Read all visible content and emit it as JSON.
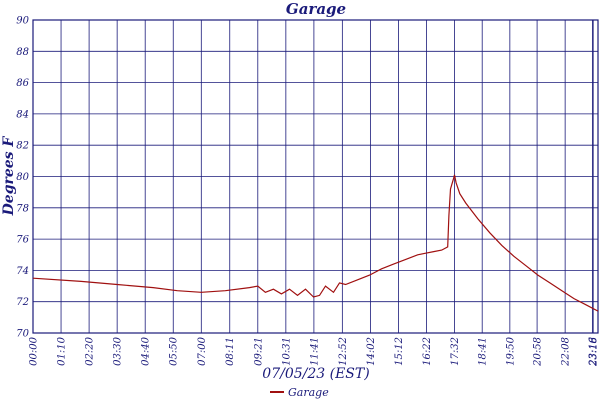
{
  "chart_data": {
    "type": "line",
    "title": "Garage",
    "xlabel": "07/05/23 (EST)",
    "ylabel": "Degrees F",
    "ylim": [
      70,
      90
    ],
    "yticks": [
      70,
      72,
      74,
      76,
      78,
      80,
      82,
      84,
      86,
      88,
      90
    ],
    "xlim": [
      "00:00",
      "23:30"
    ],
    "xticks": [
      "00:00",
      "01:10",
      "02:20",
      "03:30",
      "04:40",
      "05:50",
      "07:00",
      "08:11",
      "09:21",
      "10:31",
      "11:41",
      "12:52",
      "14:02",
      "15:12",
      "16:22",
      "17:32",
      "18:41",
      "19:50",
      "20:58",
      "22:08",
      "23:16",
      "23:18"
    ],
    "grid": true,
    "legend_position": "bottom",
    "series": [
      {
        "name": "Garage",
        "color": "#a01010",
        "x": [
          "00:00",
          "02:00",
          "03:30",
          "05:00",
          "06:00",
          "07:00",
          "08:00",
          "09:00",
          "09:21",
          "09:40",
          "10:00",
          "10:20",
          "10:40",
          "11:00",
          "11:20",
          "11:40",
          "11:55",
          "12:10",
          "12:30",
          "12:45",
          "13:00",
          "13:30",
          "14:00",
          "14:30",
          "15:00",
          "15:30",
          "16:00",
          "16:20",
          "16:40",
          "17:00",
          "17:15",
          "17:18",
          "17:22",
          "17:30",
          "17:32",
          "17:36",
          "17:45",
          "18:00",
          "18:30",
          "19:00",
          "19:30",
          "20:00",
          "20:30",
          "21:00",
          "21:30",
          "22:00",
          "22:30",
          "23:00",
          "23:30"
        ],
        "y": [
          73.5,
          73.3,
          73.1,
          72.9,
          72.7,
          72.6,
          72.7,
          72.9,
          73.0,
          72.6,
          72.8,
          72.5,
          72.8,
          72.4,
          72.8,
          72.3,
          72.4,
          73.0,
          72.6,
          73.2,
          73.1,
          73.4,
          73.7,
          74.1,
          74.4,
          74.7,
          75.0,
          75.1,
          75.2,
          75.3,
          75.5,
          77.5,
          79.2,
          79.9,
          80.1,
          79.6,
          78.9,
          78.3,
          77.3,
          76.4,
          75.6,
          74.9,
          74.3,
          73.7,
          73.2,
          72.7,
          72.2,
          71.8,
          71.4
        ]
      }
    ]
  }
}
